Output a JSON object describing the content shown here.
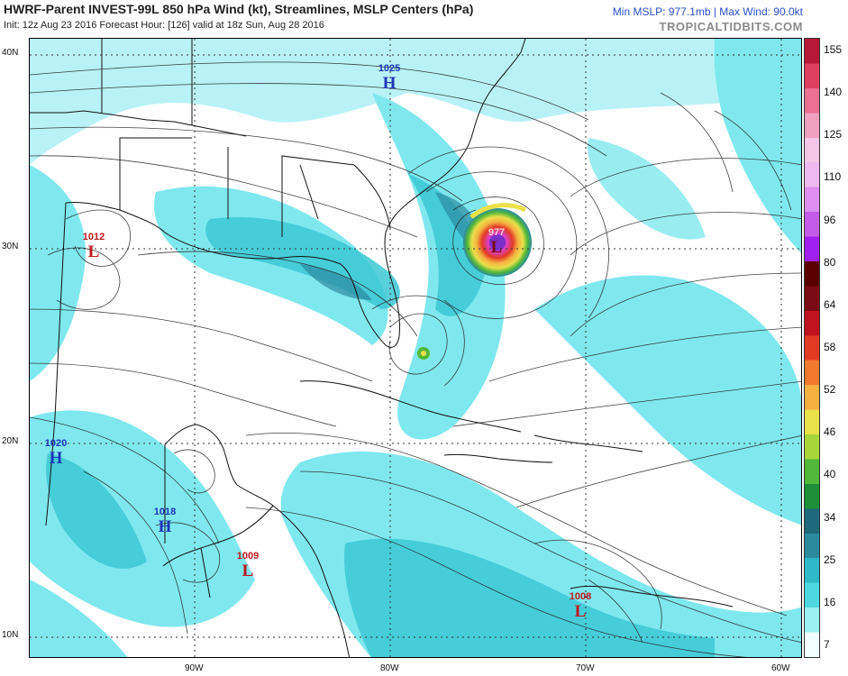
{
  "header": {
    "title": "HWRF-Parent INVEST-99L 850 hPa Wind (kt), Streamlines, MSLP Centers (hPa)",
    "subtitle": "Init: 12z Aug 23 2016   Forecast Hour: [126]   valid at 18z Sun, Aug 28 2016",
    "stats": "Min MSLP: 977.1mb | Max Wind: 90.0kt",
    "brand": "TROPICALTIDBITS.COM"
  },
  "axes": {
    "lat_labels": [
      "40N",
      "30N",
      "20N",
      "10N"
    ],
    "lon_labels": [
      "90W",
      "80W",
      "70W",
      "60W"
    ]
  },
  "colorbar": {
    "labels": [
      "155",
      "140",
      "125",
      "110",
      "96",
      "80",
      "64",
      "58",
      "52",
      "46",
      "40",
      "34",
      "25",
      "16",
      "7"
    ],
    "colors": [
      "#f0ffff",
      "#9cf0f0",
      "#4ed8e0",
      "#2fb8c8",
      "#2b8a9e",
      "#1e6a7c",
      "#1f8f3a",
      "#52b83a",
      "#a6d63a",
      "#e9e04a",
      "#f5b041",
      "#f27a2e",
      "#e33a24",
      "#c1121f",
      "#7a0a14",
      "#5a0000",
      "#a020f0",
      "#c45ce8",
      "#dd8ef0",
      "#f0b8f0",
      "#f5c6e6",
      "#f2a0c0",
      "#ec7090",
      "#e04060",
      "#b81838"
    ]
  },
  "pressure_centers": [
    {
      "type": "H",
      "value": "1025"
    },
    {
      "type": "L",
      "value": "1012"
    },
    {
      "type": "L",
      "value": "977"
    },
    {
      "type": "H",
      "value": "1020"
    },
    {
      "type": "H",
      "value": "1018"
    },
    {
      "type": "L",
      "value": "1009"
    },
    {
      "type": "L",
      "value": "1008"
    }
  ],
  "colors": {
    "high": "#1d36b8",
    "low": "#c0161c",
    "wind_light": "#7fe8ee",
    "wind_mid": "#3cc8d4",
    "wind_dark": "#2b8a9e",
    "coast": "#111111",
    "streamline": "#222222"
  }
}
